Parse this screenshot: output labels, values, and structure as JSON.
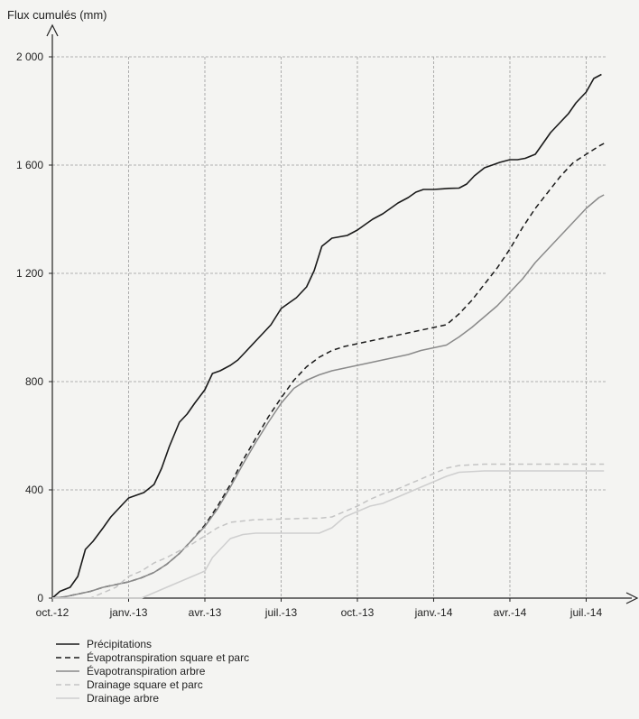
{
  "chart_data": {
    "type": "line",
    "ylabel": "Flux cumulés (mm)",
    "ylim": [
      0,
      2000
    ],
    "yticks": [
      0,
      400,
      800,
      1200,
      1600,
      2000
    ],
    "ytick_labels": [
      "0",
      "400",
      "800",
      "1 200",
      "1 600",
      "2 000"
    ],
    "xlim_months": [
      0,
      21.8
    ],
    "xticks": [
      0,
      3,
      6,
      9,
      12,
      15,
      18,
      21
    ],
    "xtick_labels": [
      "oct.-12",
      "janv.-13",
      "avr.-13",
      "juil.-13",
      "oct.-13",
      "janv.-14",
      "avr.-14",
      "juil.-14"
    ],
    "x_unit": "mois depuis oct.-12",
    "grid": true,
    "legend_position": "bottom-left",
    "series": [
      {
        "name": "Précipitations",
        "color": "#1a1a1a",
        "dash": "solid",
        "x": [
          0,
          0.3,
          0.7,
          1.0,
          1.3,
          1.6,
          2.0,
          2.3,
          2.6,
          3.0,
          3.3,
          3.6,
          4.0,
          4.3,
          4.6,
          5.0,
          5.3,
          5.6,
          6.0,
          6.3,
          6.6,
          7.0,
          7.3,
          7.6,
          8.0,
          8.3,
          8.6,
          9.0,
          9.3,
          9.6,
          10.0,
          10.3,
          10.6,
          11.0,
          11.3,
          11.6,
          12.0,
          12.3,
          12.6,
          13.0,
          13.3,
          13.6,
          14.0,
          14.3,
          14.6,
          15.0,
          15.3,
          15.6,
          16.0,
          16.3,
          16.6,
          17.0,
          17.3,
          17.6,
          18.0,
          18.3,
          18.6,
          19.0,
          19.3,
          19.6,
          20.0,
          20.3,
          20.6,
          21.0,
          21.3,
          21.6
        ],
        "y": [
          0,
          25,
          40,
          80,
          180,
          210,
          260,
          300,
          330,
          370,
          380,
          390,
          420,
          480,
          560,
          650,
          680,
          720,
          770,
          830,
          840,
          860,
          880,
          910,
          950,
          980,
          1010,
          1070,
          1090,
          1110,
          1150,
          1210,
          1300,
          1330,
          1335,
          1340,
          1360,
          1380,
          1400,
          1420,
          1440,
          1460,
          1480,
          1500,
          1510,
          1510,
          1512,
          1514,
          1515,
          1530,
          1560,
          1590,
          1600,
          1610,
          1620,
          1620,
          1625,
          1640,
          1680,
          1720,
          1760,
          1790,
          1830,
          1870,
          1920,
          1935
        ]
      },
      {
        "name": "Évapotranspiration square et parc",
        "color": "#1a1a1a",
        "dash": "dashed",
        "x": [
          0,
          0.5,
          1.0,
          1.5,
          2.0,
          2.5,
          3.0,
          3.5,
          4.0,
          4.5,
          5.0,
          5.5,
          6.0,
          6.5,
          7.0,
          7.5,
          8.0,
          8.5,
          9.0,
          9.5,
          10.0,
          10.5,
          11.0,
          11.5,
          12.0,
          12.5,
          13.0,
          13.5,
          14.0,
          14.5,
          15.0,
          15.5,
          16.0,
          16.5,
          17.0,
          17.5,
          18.0,
          18.5,
          19.0,
          19.5,
          20.0,
          20.5,
          21.0,
          21.5,
          21.7
        ],
        "y": [
          0,
          5,
          15,
          25,
          40,
          50,
          60,
          75,
          95,
          125,
          165,
          215,
          270,
          340,
          420,
          510,
          590,
          670,
          740,
          805,
          855,
          890,
          915,
          930,
          940,
          950,
          960,
          970,
          980,
          990,
          1000,
          1010,
          1050,
          1100,
          1160,
          1220,
          1290,
          1370,
          1440,
          1500,
          1560,
          1610,
          1640,
          1670,
          1680
        ]
      },
      {
        "name": "Évapotranspiration arbre",
        "color": "#8a8a8a",
        "dash": "solid",
        "x": [
          0,
          0.5,
          1.0,
          1.5,
          2.0,
          2.5,
          3.0,
          3.5,
          4.0,
          4.5,
          5.0,
          5.5,
          6.0,
          6.5,
          7.0,
          7.5,
          8.0,
          8.5,
          9.0,
          9.5,
          10.0,
          10.5,
          11.0,
          11.5,
          12.0,
          12.5,
          13.0,
          13.5,
          14.0,
          14.5,
          15.0,
          15.5,
          16.0,
          16.5,
          17.0,
          17.5,
          18.0,
          18.5,
          19.0,
          19.5,
          20.0,
          20.5,
          21.0,
          21.5,
          21.7
        ],
        "y": [
          0,
          5,
          15,
          25,
          40,
          50,
          60,
          75,
          95,
          125,
          165,
          215,
          265,
          330,
          410,
          495,
          575,
          650,
          720,
          775,
          805,
          825,
          840,
          850,
          860,
          870,
          880,
          890,
          900,
          915,
          925,
          935,
          965,
          1000,
          1040,
          1080,
          1130,
          1180,
          1240,
          1290,
          1340,
          1390,
          1440,
          1480,
          1490
        ]
      },
      {
        "name": "Drainage square et parc",
        "color": "#c4c4c4",
        "dash": "dashed",
        "x": [
          0,
          1.5,
          2.0,
          2.5,
          3.0,
          3.5,
          4.0,
          4.5,
          5.0,
          5.5,
          6.0,
          6.5,
          7.0,
          7.5,
          8.0,
          9.0,
          10.0,
          10.5,
          11.0,
          11.5,
          12.0,
          12.5,
          13.0,
          13.5,
          14.0,
          14.5,
          15.0,
          15.5,
          16.0,
          17.0,
          18.0,
          19.0,
          20.0,
          21.0,
          21.7
        ],
        "y": [
          0,
          0,
          20,
          40,
          80,
          100,
          130,
          150,
          175,
          200,
          230,
          260,
          280,
          285,
          290,
          292,
          295,
          295,
          300,
          320,
          340,
          365,
          385,
          400,
          420,
          440,
          460,
          480,
          490,
          495,
          495,
          495,
          495,
          495,
          495
        ]
      },
      {
        "name": "Drainage arbre",
        "color": "#cfcfcf",
        "dash": "solid",
        "x": [
          0,
          3.5,
          4.0,
          4.5,
          5.0,
          5.5,
          6.0,
          6.3,
          6.6,
          7.0,
          7.5,
          8.0,
          9.0,
          10.0,
          10.5,
          11.0,
          11.5,
          12.0,
          12.5,
          13.0,
          13.5,
          14.0,
          14.5,
          15.0,
          15.5,
          16.0,
          17.0,
          18.0,
          19.0,
          20.0,
          21.0,
          21.7
        ],
        "y": [
          0,
          0,
          20,
          40,
          60,
          80,
          100,
          150,
          180,
          220,
          235,
          240,
          240,
          240,
          240,
          260,
          300,
          320,
          340,
          350,
          370,
          390,
          410,
          430,
          450,
          465,
          470,
          470,
          470,
          470,
          470,
          470
        ]
      }
    ]
  }
}
